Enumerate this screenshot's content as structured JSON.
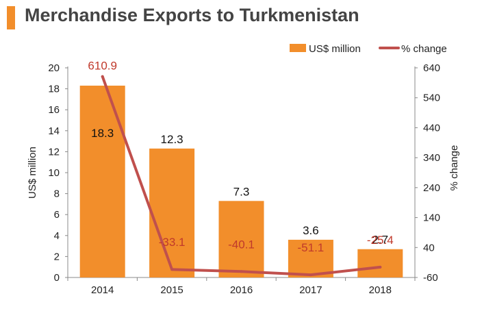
{
  "title": "Merchandise Exports to Turkmenistan",
  "colors": {
    "accent": "#f28e2b",
    "bar": "#f28e2b",
    "line": "#c0504d",
    "pct_label": "#c0392b",
    "axis": "#888888"
  },
  "chart_data": {
    "type": "bar",
    "categories": [
      "2014",
      "2015",
      "2016",
      "2017",
      "2018"
    ],
    "series": [
      {
        "name": "US$ million",
        "type": "bar",
        "axis": "left",
        "values": [
          18.3,
          12.3,
          7.3,
          3.6,
          2.7
        ],
        "value_labels": [
          "18.3",
          "12.3",
          "7.3",
          "3.6",
          "2.7"
        ]
      },
      {
        "name": "% change",
        "type": "line",
        "axis": "right",
        "values": [
          610.9,
          -33.1,
          -40.1,
          -51.1,
          -25.4
        ],
        "value_labels": [
          "610.9",
          "-33.1",
          "-40.1",
          "-51.1",
          "-25.4"
        ]
      }
    ],
    "ylabel": "US$ million",
    "ylim": [
      0,
      20
    ],
    "yticks": [
      "0",
      "2",
      "4",
      "6",
      "8",
      "10",
      "12",
      "14",
      "16",
      "18",
      "20"
    ],
    "y2label": "% change",
    "y2lim": [
      -60,
      640
    ],
    "y2ticks": [
      "-60",
      "40",
      "140",
      "240",
      "340",
      "440",
      "540",
      "640"
    ],
    "legend": "top-right",
    "grid": false
  }
}
